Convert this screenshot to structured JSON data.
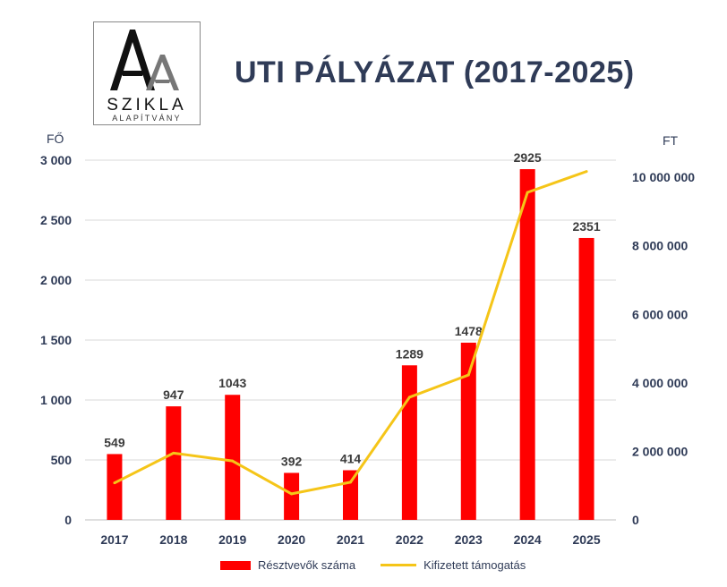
{
  "logo": {
    "big_letter": "A",
    "small_letter": "A",
    "name": "SZIKLA",
    "subtitle": "ALAPÍTVÁNY"
  },
  "colors": {
    "bar": "#ff0000",
    "line": "#f5c518",
    "text": "#2f3b57",
    "grid": "#d9d9d9"
  },
  "chart_data": {
    "type": "bar+line",
    "title": "UTI PÁLYÁZAT (2017-2025)",
    "left_axis_label": "FŐ",
    "right_axis_label": "FT",
    "categories": [
      "2017",
      "2018",
      "2019",
      "2020",
      "2021",
      "2022",
      "2023",
      "2024",
      "2025"
    ],
    "left_ylim": [
      0,
      3000
    ],
    "left_ticks": [
      0,
      500,
      1000,
      1500,
      2000,
      2500,
      3000
    ],
    "left_tick_labels": [
      "0",
      "500",
      "1 000",
      "1 500",
      "2 000",
      "2 500",
      "3 000"
    ],
    "right_ylim": [
      0,
      10500000
    ],
    "right_ticks": [
      0,
      2000000,
      4000000,
      6000000,
      8000000,
      10000000
    ],
    "right_tick_labels": [
      "0",
      "2 000 000",
      "4 000 000",
      "6 000 000",
      "8 000 000",
      "10 000 000"
    ],
    "series": [
      {
        "name": "Résztvevők száma",
        "type": "bar",
        "axis": "left",
        "values": [
          549,
          947,
          1043,
          392,
          414,
          1289,
          1478,
          2925,
          2351
        ],
        "labels": [
          "549",
          "947",
          "1043",
          "392",
          "414",
          "1289",
          "1478",
          "2925",
          "2351"
        ]
      },
      {
        "name": "Kifizetett támogatás",
        "type": "line",
        "axis": "right",
        "values": [
          1080000,
          1950000,
          1720000,
          760000,
          1100000,
          3580000,
          4230000,
          9560000,
          10170000
        ]
      }
    ],
    "legend_position": "bottom"
  }
}
